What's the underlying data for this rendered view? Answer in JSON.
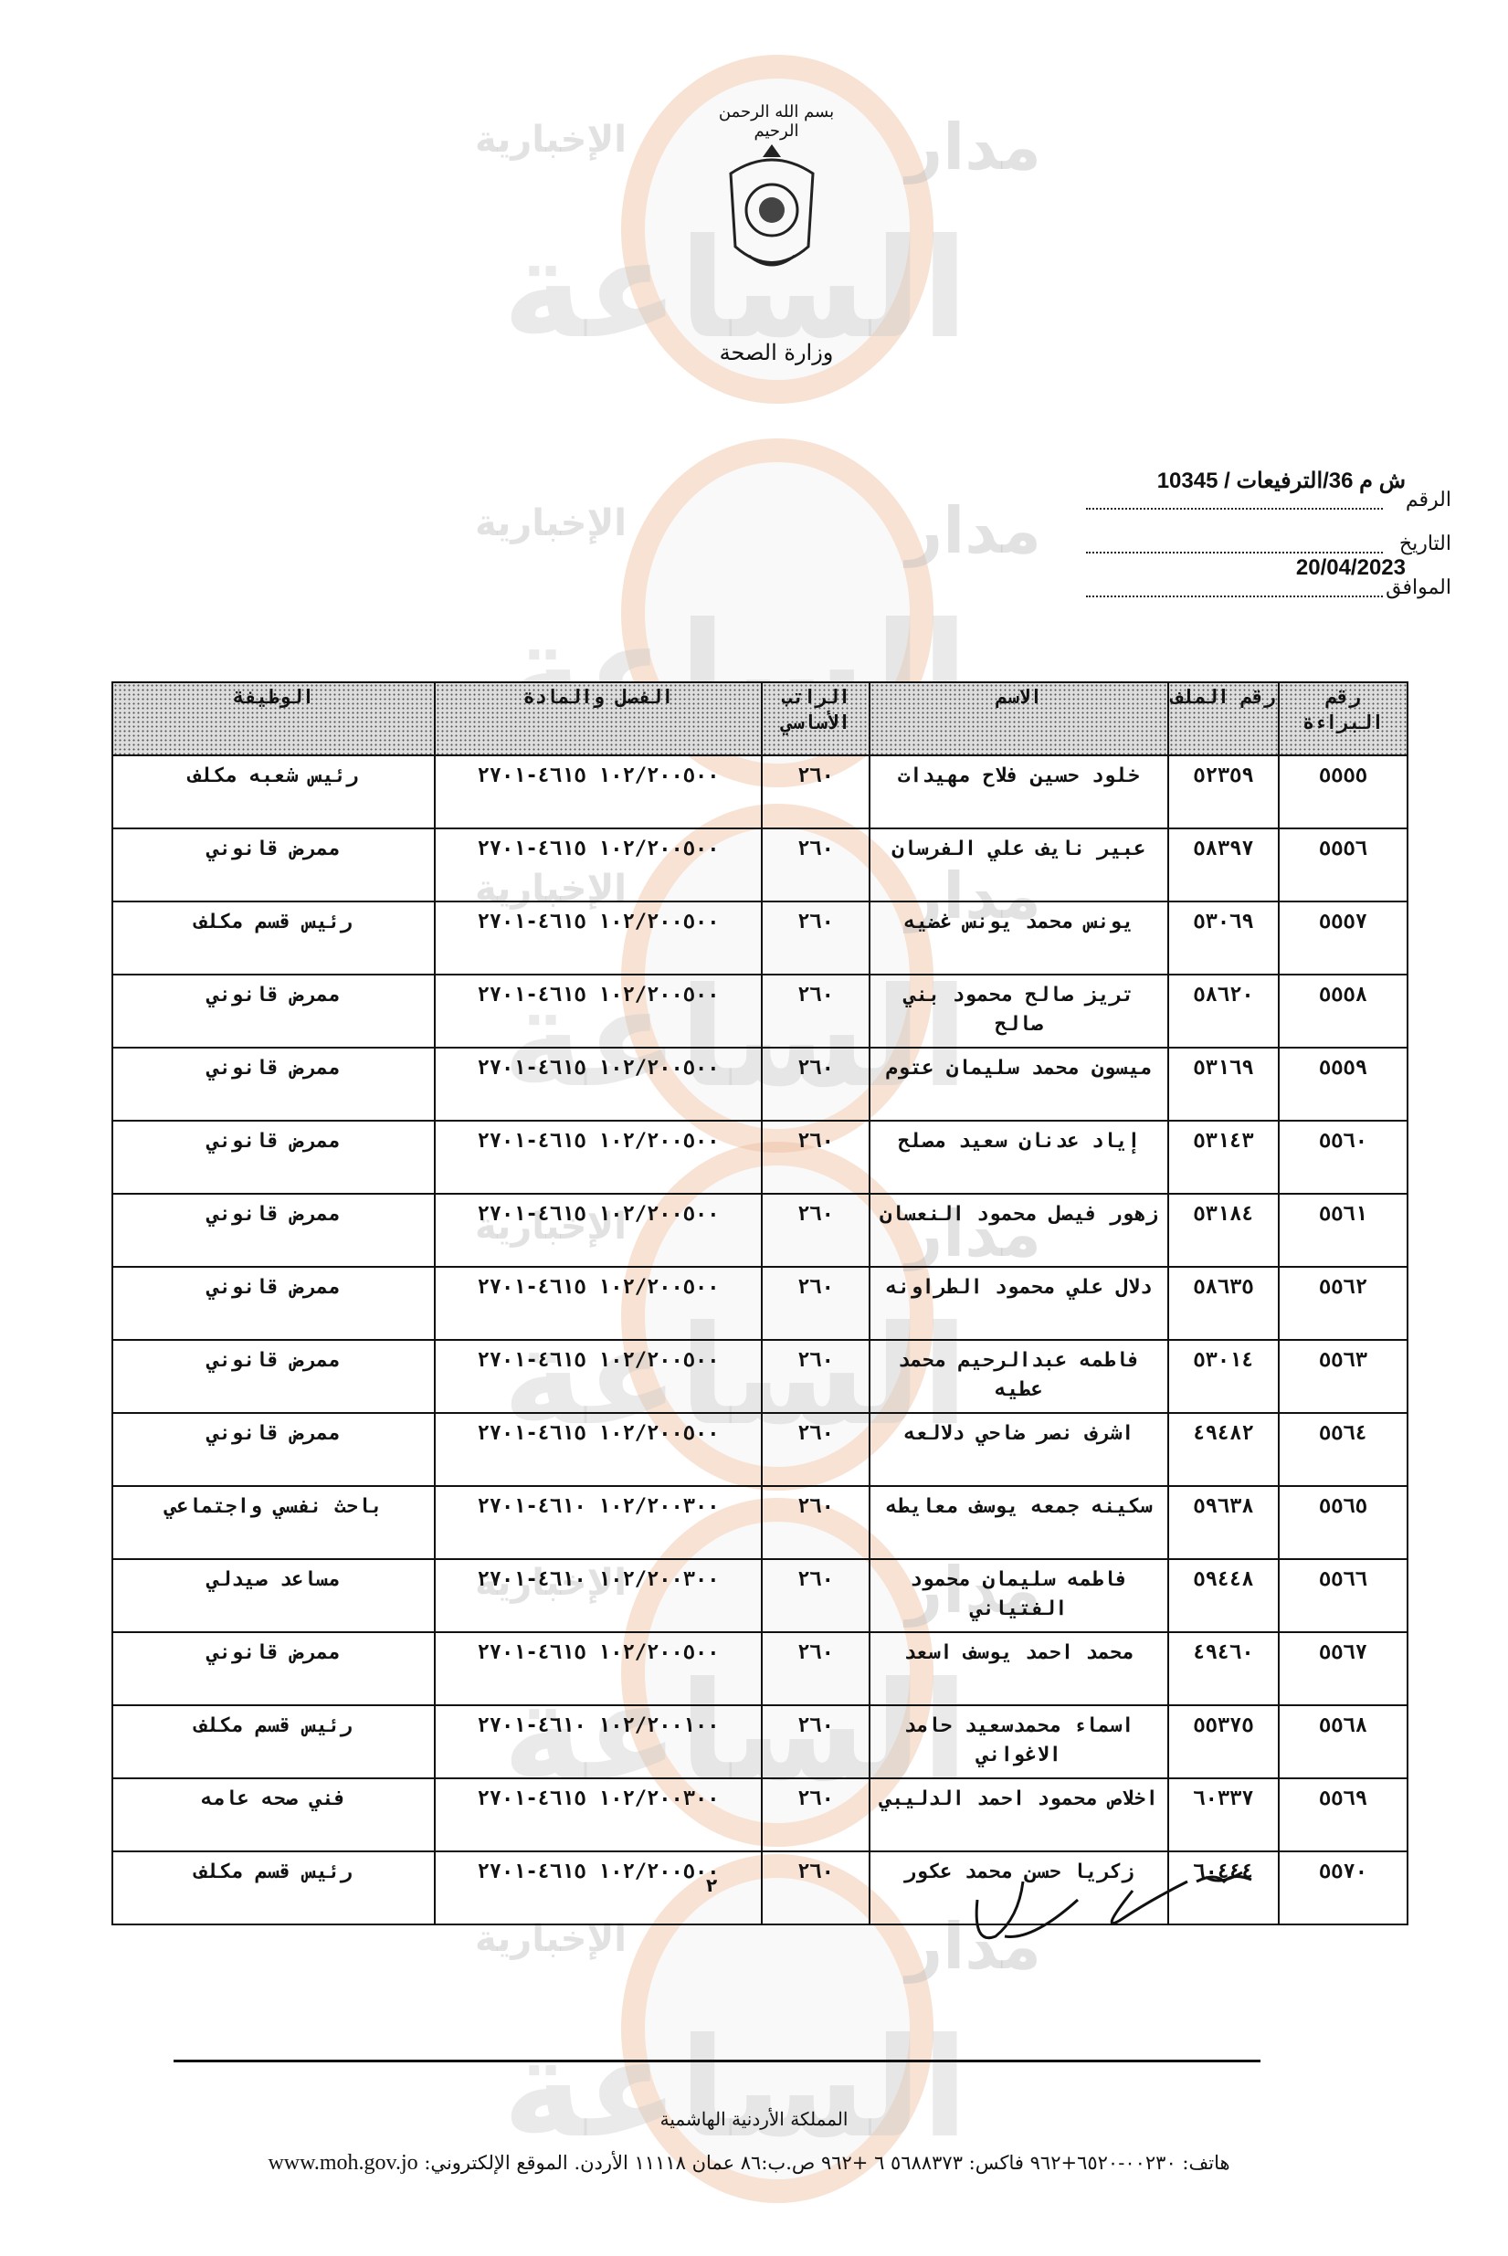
{
  "watermark": {
    "site": "الإخبارية",
    "brand": "مدار",
    "brand_large": "الساعة"
  },
  "letterhead": {
    "basmala": "بسم الله الرحمن الرحيم",
    "ministry": "وزارة الصحة"
  },
  "reference": {
    "number_label": "الرقم",
    "number_value": "ش م 36/الترفيعات / 10345",
    "date_label": "التاريخ",
    "date_value": "",
    "corresponding_label": "الموافق",
    "corresponding_value": "20/04/2023"
  },
  "table": {
    "headers": [
      "رقم البراءة",
      "رقم الملف",
      "الاسم",
      "الراتب الأساسي",
      "الفصل والمادة",
      "الوظيفة"
    ],
    "rows": [
      [
        "٥٥٥٥",
        "٥٢٣٥٩",
        "خلود حسين فلاح مهيدات",
        "٢٦٠",
        "١٠٢/٢٠٠٥٠٠ ٤٦١٥-٢٧٠١",
        "رئيس شعبه مكلف"
      ],
      [
        "٥٥٥٦",
        "٥٨٣٩٧",
        "عبير نايف علي الفرسان",
        "٢٦٠",
        "١٠٢/٢٠٠٥٠٠ ٤٦١٥-٢٧٠١",
        "ممرض قانوني"
      ],
      [
        "٥٥٥٧",
        "٥٣٠٦٩",
        "يونس محمد يونس غضيه",
        "٢٦٠",
        "١٠٢/٢٠٠٥٠٠ ٤٦١٥-٢٧٠١",
        "رئيس قسم مكلف"
      ],
      [
        "٥٥٥٨",
        "٥٨٦٢٠",
        "تريز صالح محمود بني صالح",
        "٢٦٠",
        "١٠٢/٢٠٠٥٠٠ ٤٦١٥-٢٧٠١",
        "ممرض قانوني"
      ],
      [
        "٥٥٥٩",
        "٥٣١٦٩",
        "ميسون محمد سليمان عتوم",
        "٢٦٠",
        "١٠٢/٢٠٠٥٠٠ ٤٦١٥-٢٧٠١",
        "ممرض قانوني"
      ],
      [
        "٥٥٦٠",
        "٥٣١٤٣",
        "إياد عدنان سعيد مصلح",
        "٢٦٠",
        "١٠٢/٢٠٠٥٠٠ ٤٦١٥-٢٧٠١",
        "ممرض قانوني"
      ],
      [
        "٥٥٦١",
        "٥٣١٨٤",
        "زهور فيصل محمود النعسان",
        "٢٦٠",
        "١٠٢/٢٠٠٥٠٠ ٤٦١٥-٢٧٠١",
        "ممرض قانوني"
      ],
      [
        "٥٥٦٢",
        "٥٨٦٣٥",
        "دلال علي محمود الطراونه",
        "٢٦٠",
        "١٠٢/٢٠٠٥٠٠ ٤٦١٥-٢٧٠١",
        "ممرض قانوني"
      ],
      [
        "٥٥٦٣",
        "٥٣٠١٤",
        "فاطمه عبدالرحيم محمد عطيه",
        "٢٦٠",
        "١٠٢/٢٠٠٥٠٠ ٤٦١٥-٢٧٠١",
        "ممرض قانوني"
      ],
      [
        "٥٥٦٤",
        "٤٩٤٨٢",
        "اشرف نصر ضاحي دلالعه",
        "٢٦٠",
        "١٠٢/٢٠٠٥٠٠ ٤٦١٥-٢٧٠١",
        "ممرض قانوني"
      ],
      [
        "٥٥٦٥",
        "٥٩٦٣٨",
        "سكينه جمعه يوسف معايطه",
        "٢٦٠",
        "١٠٢/٢٠٠٣٠٠ ٤٦١٠-٢٧٠١",
        "باحث نفسي واجتماعي"
      ],
      [
        "٥٥٦٦",
        "٥٩٤٤٨",
        "فاطمه سليمان محمود الفتياني",
        "٢٦٠",
        "١٠٢/٢٠٠٣٠٠ ٤٦١٠-٢٧٠١",
        "مساعد صيدلي"
      ],
      [
        "٥٥٦٧",
        "٤٩٤٦٠",
        "محمد احمد يوسف اسعد",
        "٢٦٠",
        "١٠٢/٢٠٠٥٠٠ ٤٦١٥-٢٧٠١",
        "ممرض قانوني"
      ],
      [
        "٥٥٦٨",
        "٥٥٣٧٥",
        "اسماء محمدسعيد حامد الاغواني",
        "٢٦٠",
        "١٠٢/٢٠٠١٠٠ ٤٦١٠-٢٧٠١",
        "رئيس قسم مكلف"
      ],
      [
        "٥٥٦٩",
        "٦٠٣٣٧",
        "اخلاص محمود احمد الدليبي",
        "٢٦٠",
        "١٠٢/٢٠٠٣٠٠ ٤٦١٥-٢٧٠١",
        "فني صحه عامه"
      ],
      [
        "٥٥٧٠",
        "٦٠٤٤٤",
        "زكريا حسن محمد عكور",
        "٢٦٠",
        "١٠٢/٢٠٠٥٠٠ ٤٦١٥-٢٧٠١",
        "رئيس قسم مكلف"
      ]
    ]
  },
  "page_number": "٢",
  "footer": {
    "kingdom": "المملكة الأردنية الهاشمية",
    "contact": "هاتف: ٠٠٢٣٠-٦٥٢٠+٩٦٢ فاكس: ٥٦٨٨٣٧٣ ٦ +٩٦٢ ص.ب:٨٦ عمان ١١١١٨ الأردن. الموقع الإلكتروني:",
    "website": "www.moh.gov.jo"
  }
}
